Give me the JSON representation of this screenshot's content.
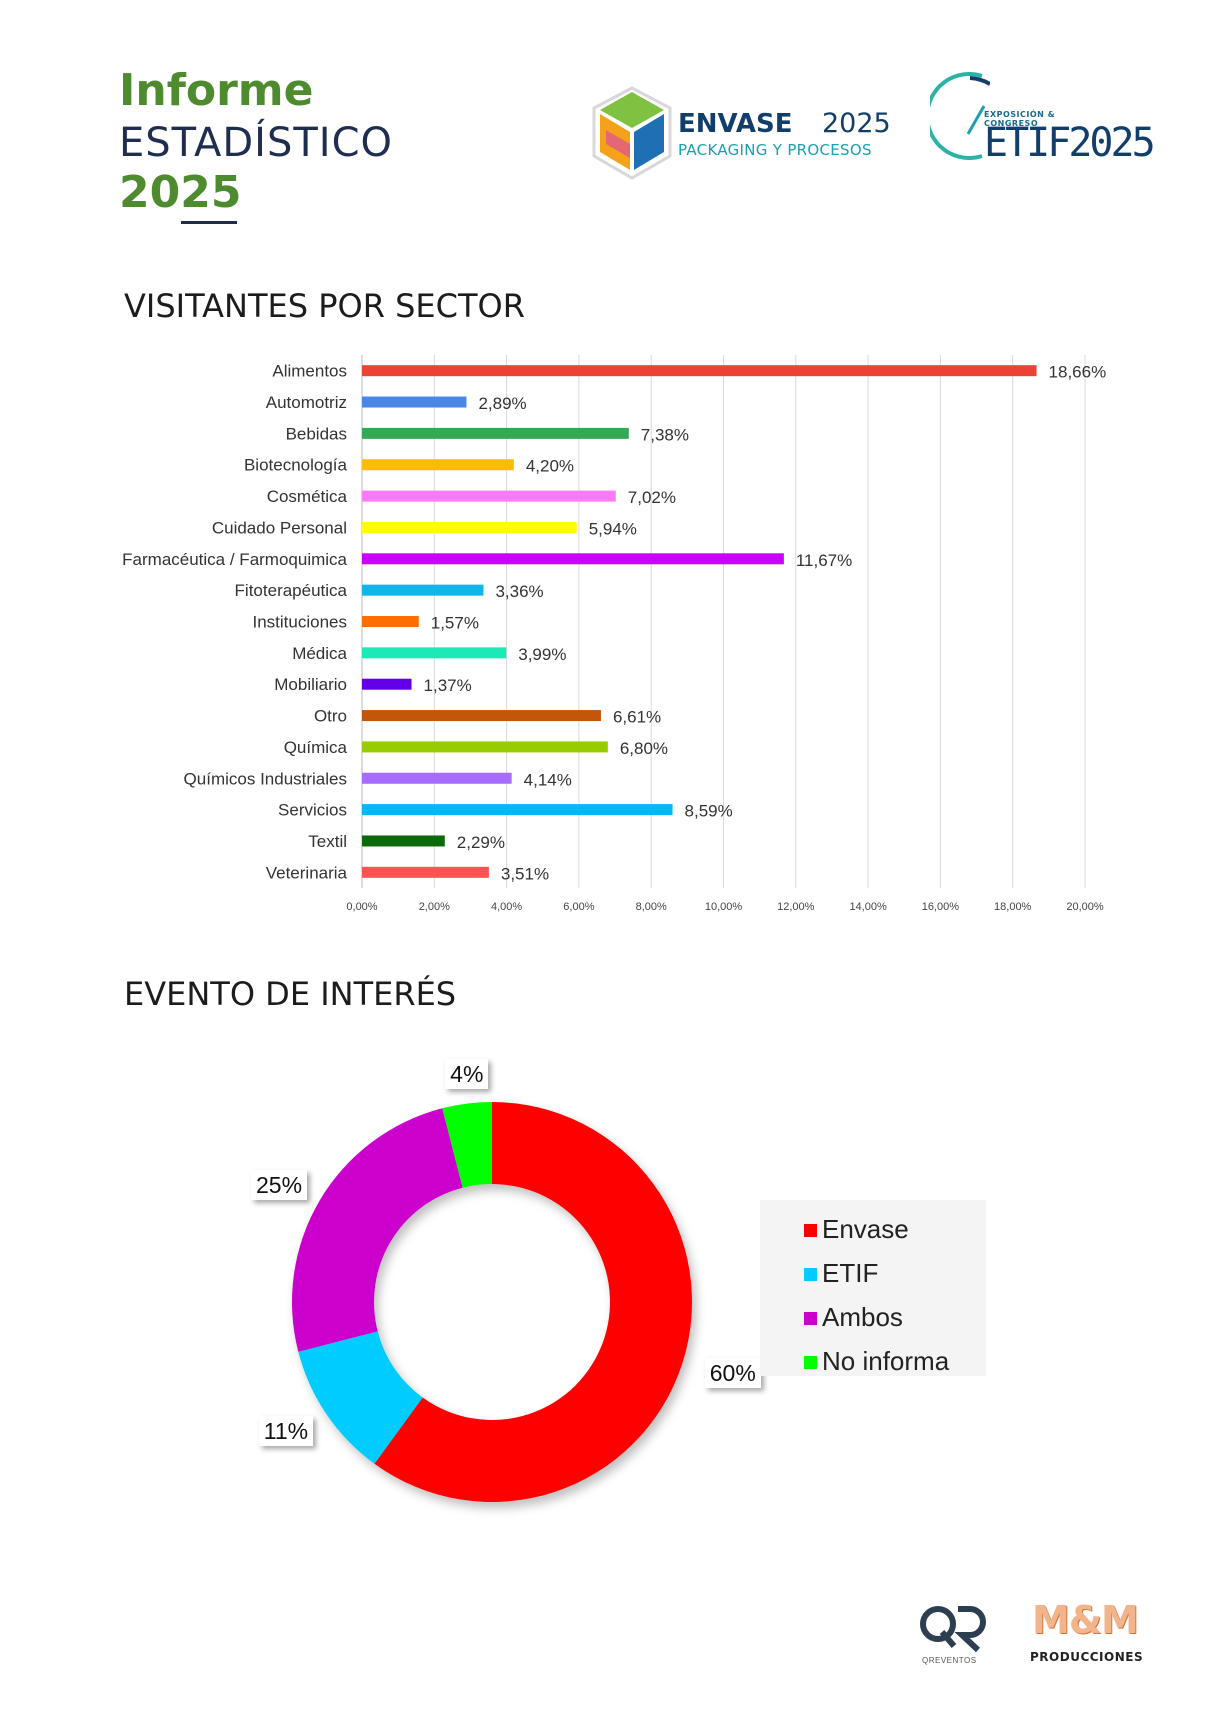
{
  "header": {
    "title_line1": "Informe",
    "title_line2": "ESTADÍSTICO",
    "title_line3": "2025"
  },
  "logos": {
    "envase_word": "ENVASE",
    "envase_year": "2025",
    "envase_sub": "PACKAGING Y PROCESOS",
    "etif_sub": "EXPOSICIÓN & CONGRESO",
    "etif_word": "ETIF2025",
    "qr_sub": "QREVENTOS",
    "mm_word": "M&M",
    "mm_sub": "PRODUCCIONES"
  },
  "sections": {
    "sector_title": "VISITANTES POR SECTOR",
    "event_title": "EVENTO DE INTERÉS"
  },
  "chart_data": [
    {
      "type": "bar",
      "orientation": "horizontal",
      "categories": [
        "Alimentos",
        "Automotriz",
        "Bebidas",
        "Biotecnología",
        "Cosmética",
        "Cuidado Personal",
        "Farmacéutica / Farmoquimica",
        "Fitoterapéutica",
        "Instituciones",
        "Médica",
        "Mobiliario",
        "Otro",
        "Química",
        "Químicos Industriales",
        "Servicios",
        "Textil",
        "Veterinaria"
      ],
      "values": [
        18.66,
        2.89,
        7.38,
        4.2,
        7.02,
        5.94,
        11.67,
        3.36,
        1.57,
        3.99,
        1.37,
        6.61,
        6.8,
        4.14,
        8.59,
        2.29,
        3.51
      ],
      "value_labels": [
        "18,66%",
        "2,89%",
        "7,38%",
        "4,20%",
        "7,02%",
        "5,94%",
        "11,67%",
        "3,36%",
        "1,57%",
        "3,99%",
        "1,37%",
        "6,61%",
        "6,80%",
        "4,14%",
        "8,59%",
        "2,29%",
        "3,51%"
      ],
      "colors": [
        "#ea4335",
        "#4a86e8",
        "#34a853",
        "#fbbc04",
        "#ff7af6",
        "#ffff00",
        "#cc00ff",
        "#12b5ea",
        "#ff6d01",
        "#1de9b6",
        "#6200ea",
        "#c2570c",
        "#99cc00",
        "#a66bff",
        "#00b8f5",
        "#0b6b0b",
        "#ff5252"
      ],
      "xlim": [
        0,
        20
      ],
      "ticks": [
        "0,00%",
        "2,00%",
        "4,00%",
        "6,00%",
        "8,00%",
        "10,00%",
        "12,00%",
        "14,00%",
        "16,00%",
        "18,00%",
        "20,00%"
      ],
      "grid": true
    },
    {
      "type": "pie",
      "subtype": "donut",
      "categories": [
        "Envase",
        "ETIF",
        "Ambos",
        "No informa"
      ],
      "values": [
        60,
        11,
        25,
        4
      ],
      "value_labels": [
        "60%",
        "11%",
        "25%",
        "4%"
      ],
      "colors": [
        "#ff0000",
        "#00ccff",
        "#cc00cc",
        "#00ff00"
      ],
      "legend": "right"
    }
  ]
}
